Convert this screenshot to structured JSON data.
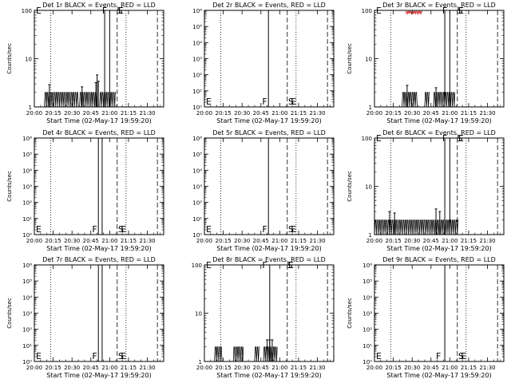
{
  "chart_data": [
    {
      "type": "line",
      "title": "Det 1r BLACK = Events, RED = LLD",
      "ylabel": "Counts/sec",
      "xlabel": "Start Time (02-May-17 19:59:20)",
      "x_ticks": [
        "20:00",
        "20:15",
        "20:30",
        "20:45",
        "21:00",
        "21:15",
        "21:30"
      ],
      "y_scale": "log",
      "y_ticks": [
        {
          "value": 1,
          "label": "1"
        },
        {
          "value": 10,
          "label": "10"
        },
        {
          "value": 100,
          "label": "100"
        }
      ],
      "ylim": [
        1,
        100
      ],
      "series": [
        {
          "color": "#000000",
          "y_low": 1,
          "y_high": 2,
          "segments": [
            [
              "20:08",
              "20:35"
            ],
            [
              "20:36",
              "20:50"
            ],
            [
              "20:52",
              "21:05"
            ]
          ],
          "spikes": [
            [
              "20:12",
              2.9
            ],
            [
              "20:38",
              2.6
            ],
            [
              "20:49",
              3.2
            ],
            [
              "20:50",
              4.6
            ],
            [
              "20:51",
              3.4
            ]
          ]
        }
      ],
      "markers": [
        {
          "time": "20:56",
          "style": "solid"
        },
        {
          "time": "21:00",
          "style": "solid"
        }
      ],
      "legend_chars": [
        {
          "text": "F",
          "time": "20:56",
          "y": 100
        },
        {
          "text": "S",
          "time": "21:08",
          "y": 100
        },
        {
          "text": "E",
          "time": "21:09",
          "y": 100
        }
      ],
      "left_marks": [
        {
          "text": "E",
          "y": 100
        }
      ]
    },
    {
      "type": "line",
      "title": "Det 2r BLACK = Events, RED = LLD",
      "ylabel": "",
      "xlabel": "Start Time (02-May-17 19:59:20)",
      "x_ticks": [
        "20:00",
        "20:15",
        "20:30",
        "20:45",
        "21:00",
        "21:15",
        "21:30"
      ],
      "y_scale": "log",
      "y_ticks": [
        {
          "value": 1,
          "label": "10⁰"
        },
        {
          "value": 10,
          "label": "10¹"
        },
        {
          "value": 100,
          "label": "10²"
        },
        {
          "value": 1000,
          "label": "10³"
        },
        {
          "value": 10000,
          "label": "10⁴"
        },
        {
          "value": 100000,
          "label": "10⁵"
        },
        {
          "value": 1000000,
          "label": "10⁶"
        }
      ],
      "ylim": [
        1,
        1000000
      ],
      "series": [],
      "markers": [
        {
          "time": "20:51",
          "style": "solid"
        }
      ],
      "legend_chars": [
        {
          "text": "F",
          "time": "20:48",
          "y": 2.2
        },
        {
          "text": "S",
          "time": "21:09",
          "y": 2.2
        },
        {
          "text": "E",
          "time": "21:11",
          "y": 2.2
        }
      ],
      "left_marks": [
        {
          "text": "E",
          "y": 2.2
        }
      ]
    },
    {
      "type": "line",
      "title": "Det 3r BLACK = Events, RED = LLD",
      "ylabel": "Counts/sec",
      "xlabel": "Start Time (02-May-17 19:59:20)",
      "x_ticks": [
        "20:00",
        "20:15",
        "20:30",
        "20:45",
        "21:00",
        "21:15",
        "21:30"
      ],
      "y_scale": "log",
      "y_ticks": [
        {
          "value": 1,
          "label": "1"
        },
        {
          "value": 10,
          "label": "10"
        },
        {
          "value": 100,
          "label": "100"
        }
      ],
      "ylim": [
        1,
        100
      ],
      "series": [
        {
          "color": "#000000",
          "y_low": 1,
          "y_high": 2,
          "segments": [
            [
              "20:22",
              "20:34"
            ],
            [
              "20:40",
              "20:44"
            ],
            [
              "20:47",
              "21:04"
            ]
          ],
          "spikes": [
            [
              "20:26",
              2.8
            ],
            [
              "20:49",
              2.5
            ]
          ]
        },
        {
          "color": "#cc0000",
          "y_low": 85,
          "y_high": 95,
          "segments": [
            [
              "20:25",
              "20:38"
            ]
          ],
          "spikes": []
        }
      ],
      "markers": [
        {
          "time": "20:56",
          "style": "solid"
        },
        {
          "time": "21:00",
          "style": "solid"
        }
      ],
      "legend_chars": [
        {
          "text": "F",
          "time": "20:56",
          "y": 100
        },
        {
          "text": "S",
          "time": "21:08",
          "y": 100
        },
        {
          "text": "E",
          "time": "21:09",
          "y": 100
        }
      ],
      "left_marks": [
        {
          "text": "E",
          "y": 100
        }
      ]
    },
    {
      "type": "line",
      "title": "Det 4r BLACK = Events, RED = LLD",
      "ylabel": "Counts/sec",
      "xlabel": "Start Time (02-May-17 19:59:20)",
      "x_ticks": [
        "20:00",
        "20:15",
        "20:30",
        "20:45",
        "21:00",
        "21:15",
        "21:30"
      ],
      "y_scale": "log",
      "y_ticks": [
        {
          "value": 1,
          "label": "10⁰"
        },
        {
          "value": 10,
          "label": "10¹"
        },
        {
          "value": 100,
          "label": "10²"
        },
        {
          "value": 1000,
          "label": "10³"
        },
        {
          "value": 10000,
          "label": "10⁴"
        },
        {
          "value": 100000,
          "label": "10⁵"
        },
        {
          "value": 1000000,
          "label": "10⁶"
        }
      ],
      "ylim": [
        1,
        1000000
      ],
      "series": [],
      "markers": [
        {
          "time": "20:51",
          "style": "solid"
        },
        {
          "time": "20:54",
          "style": "solid"
        }
      ],
      "legend_chars": [
        {
          "text": "F",
          "time": "20:48",
          "y": 2.2
        },
        {
          "text": "S",
          "time": "21:09",
          "y": 2.2
        },
        {
          "text": "E",
          "time": "21:11",
          "y": 2.2
        }
      ],
      "left_marks": [
        {
          "text": "E",
          "y": 2.2
        }
      ]
    },
    {
      "type": "line",
      "title": "Det 5r BLACK = Events, RED = LLD",
      "ylabel": "",
      "xlabel": "Start Time (02-May-17 19:59:20)",
      "x_ticks": [
        "20:00",
        "20:15",
        "20:30",
        "20:45",
        "21:00",
        "21:15",
        "21:30"
      ],
      "y_scale": "log",
      "y_ticks": [
        {
          "value": 1,
          "label": "10⁰"
        },
        {
          "value": 10,
          "label": "10¹"
        },
        {
          "value": 100,
          "label": "10²"
        },
        {
          "value": 1000,
          "label": "10³"
        },
        {
          "value": 10000,
          "label": "10⁴"
        },
        {
          "value": 100000,
          "label": "10⁵"
        },
        {
          "value": 1000000,
          "label": "10⁶"
        }
      ],
      "ylim": [
        1,
        1000000
      ],
      "series": [],
      "markers": [
        {
          "time": "20:51",
          "style": "solid"
        }
      ],
      "legend_chars": [
        {
          "text": "F",
          "time": "20:48",
          "y": 2.2
        },
        {
          "text": "S",
          "time": "21:09",
          "y": 2.2
        },
        {
          "text": "E",
          "time": "21:11",
          "y": 2.2
        }
      ],
      "left_marks": [
        {
          "text": "E",
          "y": 2.2
        }
      ]
    },
    {
      "type": "line",
      "title": "Det 6r BLACK = Events, RED = LLD",
      "ylabel": "Counts/sec",
      "xlabel": "Start Time (02-May-17 19:59:20)",
      "x_ticks": [
        "20:00",
        "20:15",
        "20:30",
        "20:45",
        "21:00",
        "21:15",
        "21:30"
      ],
      "y_scale": "log",
      "y_ticks": [
        {
          "value": 1,
          "label": "1"
        },
        {
          "value": 10,
          "label": "10"
        },
        {
          "value": 100,
          "label": "100"
        }
      ],
      "ylim": [
        1,
        100
      ],
      "series": [
        {
          "color": "#000000",
          "y_low": 1,
          "y_high": 2,
          "segments": [
            [
              "20:00",
              "21:07"
            ]
          ],
          "spikes": [
            [
              "20:12",
              3.0
            ],
            [
              "20:16",
              2.8
            ],
            [
              "20:49",
              3.4
            ],
            [
              "20:52",
              3.0
            ]
          ]
        }
      ],
      "markers": [
        {
          "time": "20:56",
          "style": "solid"
        },
        {
          "time": "21:00",
          "style": "solid"
        }
      ],
      "legend_chars": [
        {
          "text": "F",
          "time": "20:56",
          "y": 100
        },
        {
          "text": "S",
          "time": "21:08",
          "y": 100
        },
        {
          "text": "E",
          "time": "21:09",
          "y": 100
        }
      ],
      "left_marks": [
        {
          "text": "E",
          "y": 100
        }
      ]
    },
    {
      "type": "line",
      "title": "Det 7r BLACK = Events, RED = LLD",
      "ylabel": "Counts/sec",
      "xlabel": "Start Time (02-May-17 19:59:20)",
      "x_ticks": [
        "20:00",
        "20:15",
        "20:30",
        "20:45",
        "21:00",
        "21:15",
        "21:30"
      ],
      "y_scale": "log",
      "y_ticks": [
        {
          "value": 1,
          "label": "10⁰"
        },
        {
          "value": 10,
          "label": "10¹"
        },
        {
          "value": 100,
          "label": "10²"
        },
        {
          "value": 1000,
          "label": "10³"
        },
        {
          "value": 10000,
          "label": "10⁴"
        },
        {
          "value": 100000,
          "label": "10⁵"
        },
        {
          "value": 1000000,
          "label": "10⁶"
        }
      ],
      "ylim": [
        1,
        1000000
      ],
      "series": [],
      "markers": [
        {
          "time": "20:51",
          "style": "solid"
        },
        {
          "time": "20:54",
          "style": "solid"
        }
      ],
      "legend_chars": [
        {
          "text": "F",
          "time": "20:48",
          "y": 2.2
        },
        {
          "text": "S",
          "time": "21:09",
          "y": 2.2
        },
        {
          "text": "E",
          "time": "21:11",
          "y": 2.2
        }
      ],
      "left_marks": [
        {
          "text": "E",
          "y": 2.2
        }
      ]
    },
    {
      "type": "line",
      "title": "Det 8r BLACK = Events, RED = LLD",
      "ylabel": "",
      "xlabel": "Start Time (02-May-17 19:59:20)",
      "x_ticks": [
        "20:00",
        "20:15",
        "20:30",
        "20:45",
        "21:00",
        "21:15",
        "21:30"
      ],
      "y_scale": "log",
      "y_ticks": [
        {
          "value": 1,
          "label": "1"
        },
        {
          "value": 10,
          "label": "10"
        },
        {
          "value": 100,
          "label": "100"
        }
      ],
      "ylim": [
        1,
        100
      ],
      "series": [
        {
          "color": "#000000",
          "y_low": 1,
          "y_high": 2,
          "segments": [
            [
              "20:08",
              "20:14"
            ],
            [
              "20:23",
              "20:31"
            ],
            [
              "20:40",
              "20:44"
            ],
            [
              "20:47",
              "20:58"
            ]
          ],
          "spikes": [
            [
              "20:50",
              2.8
            ],
            [
              "20:52",
              2.8
            ],
            [
              "20:54",
              2.8
            ]
          ]
        }
      ],
      "markers": [
        {
          "time": "20:52",
          "style": "solid"
        }
      ],
      "legend_chars": [
        {
          "text": "F",
          "time": "20:48",
          "y": 100
        },
        {
          "text": "S",
          "time": "21:08",
          "y": 100
        },
        {
          "text": "E",
          "time": "21:09",
          "y": 100
        }
      ],
      "left_marks": [
        {
          "text": "E",
          "y": 100
        }
      ]
    },
    {
      "type": "line",
      "title": "Det 9r BLACK = Events, RED = LLD",
      "ylabel": "Counts/sec",
      "xlabel": "Start Time (02-May-17 19:59:20)",
      "x_ticks": [
        "20:00",
        "20:15",
        "20:30",
        "20:45",
        "21:00",
        "21:15",
        "21:30"
      ],
      "y_scale": "log",
      "y_ticks": [
        {
          "value": 1,
          "label": "10⁰"
        },
        {
          "value": 10,
          "label": "10¹"
        },
        {
          "value": 100,
          "label": "10²"
        },
        {
          "value": 1000,
          "label": "10³"
        },
        {
          "value": 10000,
          "label": "10⁴"
        },
        {
          "value": 100000,
          "label": "10⁵"
        },
        {
          "value": 1000000,
          "label": "10⁶"
        }
      ],
      "ylim": [
        1,
        1000000
      ],
      "series": [],
      "markers": [
        {
          "time": "20:56",
          "style": "solid"
        }
      ],
      "legend_chars": [
        {
          "text": "F",
          "time": "20:51",
          "y": 2.2
        },
        {
          "text": "S",
          "time": "21:09",
          "y": 2.2
        },
        {
          "text": "E",
          "time": "21:11",
          "y": 2.2
        }
      ],
      "left_marks": [
        {
          "text": "E",
          "y": 2.2
        }
      ]
    }
  ],
  "reference_lines": [
    {
      "time": "20:13",
      "style": "dotted"
    },
    {
      "time": "21:06",
      "style": "dashed"
    },
    {
      "time": "21:13",
      "style": "dotted"
    },
    {
      "time": "21:38",
      "style": "dashed"
    }
  ],
  "x_range": [
    "20:00",
    "21:43"
  ]
}
